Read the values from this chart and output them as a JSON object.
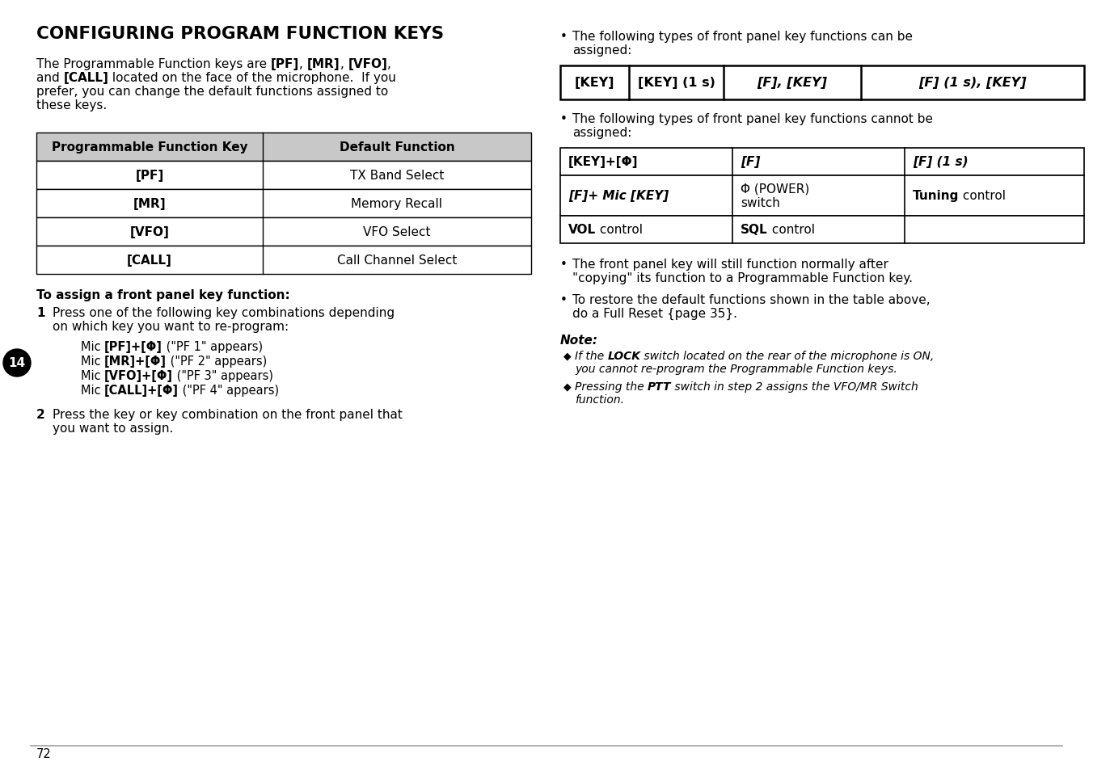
{
  "bg_color": "#ffffff",
  "title": "CONFIGURING PROGRAM FUNCTION KEYS",
  "table1_header": [
    "Programmable Function Key",
    "Default Function"
  ],
  "table1_rows": [
    [
      "[PF]",
      "TX Band Select"
    ],
    [
      "[MR]",
      "Memory Recall"
    ],
    [
      "[VFO]",
      "VFO Select"
    ],
    [
      "[CALL]",
      "Call Channel Select"
    ]
  ],
  "subheading": "To assign a front panel key function:",
  "table2_cells": [
    "[KEY]",
    "[KEY] (1 s)",
    "[F], [KEY]",
    "[F] (1 s), [KEY]"
  ],
  "table3_header": [
    "[KEY]+[Φ]",
    "[F]",
    "[F] (1 s)"
  ],
  "table3_row1": [
    "[F]+ Mic [KEY]",
    "Φ (POWER)\nswitch",
    "Tuning control"
  ],
  "table3_row2": [
    "VOL control",
    "SQL control",
    ""
  ],
  "page_num": "72",
  "chapter_num": "14"
}
